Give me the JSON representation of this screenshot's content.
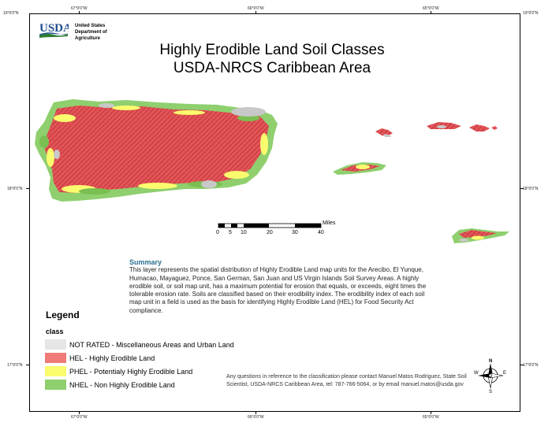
{
  "coordinates": {
    "top_left": "19°0'0\"N",
    "top_right": "19°0'0\"N",
    "top": [
      "67°0'0\"W",
      "66°0'0\"W",
      "65°0'0\"W"
    ],
    "left_mid": "18°0'0\"N",
    "right_mid": "18°0'0\"N",
    "left_bottom": "17°0'0\"N",
    "right_bottom": "17°0'0\"N",
    "bottom": [
      "67°0'0\"W",
      "66°0'0\"W",
      "65°0'0\"W"
    ]
  },
  "header": {
    "logo_text": "USDA",
    "agency_lines": [
      "United States",
      "Department of",
      "Agriculture"
    ]
  },
  "title": {
    "line1": "Highly Erodible Land Soil Classes",
    "line2": "USDA-NRCS Caribbean Area"
  },
  "scale_bar": {
    "unit": "Miles",
    "ticks": [
      "0",
      "5",
      "10",
      "20",
      "30",
      "40"
    ]
  },
  "summary": {
    "heading": "Summary",
    "text": "This layer represents the spatial distribution of Highly Erodible Land map units for the Arecibo, El Yunque, Humacao, Mayaguez, Ponce, San German, San Juan and US Virgin Islands Soil Survey Areas.  A highly erodible soil, or soil map unit, has a maximum potential for erosion that equals, or exceeds, eight times the tolerable erosion rate. Soils are classified based on their erodibility index. The erodibility index of each soil map unit in a field is used as the basis for identifying Highly Erodible Land (HEL) for Food Security Act compliance."
  },
  "legend": {
    "title": "Legend",
    "subtitle": "class",
    "items": [
      {
        "label": "NOT RATED - Miscellaneous Areas and Urban Land",
        "color": "#e6e6e6"
      },
      {
        "label": "HEL - Highly Erodible Land",
        "color": "#f07a78"
      },
      {
        "label": "PHEL - Potentialy Highly Erodible Land",
        "color": "#fbfb6e"
      },
      {
        "label": "NHEL - Non Highly Erodible Land",
        "color": "#8fcf6e"
      }
    ]
  },
  "contact": {
    "text": "Any questions in reference to the classification please contact Manuel Matos Rodriguez, State Soil Scientist, USDA-NRCS Caribbean Area, tel: 787-766-5064, or by email manuel.matos@usda.gov"
  },
  "north_arrow": {
    "n": "N",
    "s": "S",
    "e": "E",
    "w": "W"
  },
  "colors": {
    "hel_dark": "#d93a40",
    "phel_dark": "#e8e24a",
    "nhel_dark": "#7bbf52",
    "not_rated": "#c8c8c8",
    "usda_blue": "#1f4e8c",
    "usda_green": "#2e7d32"
  }
}
